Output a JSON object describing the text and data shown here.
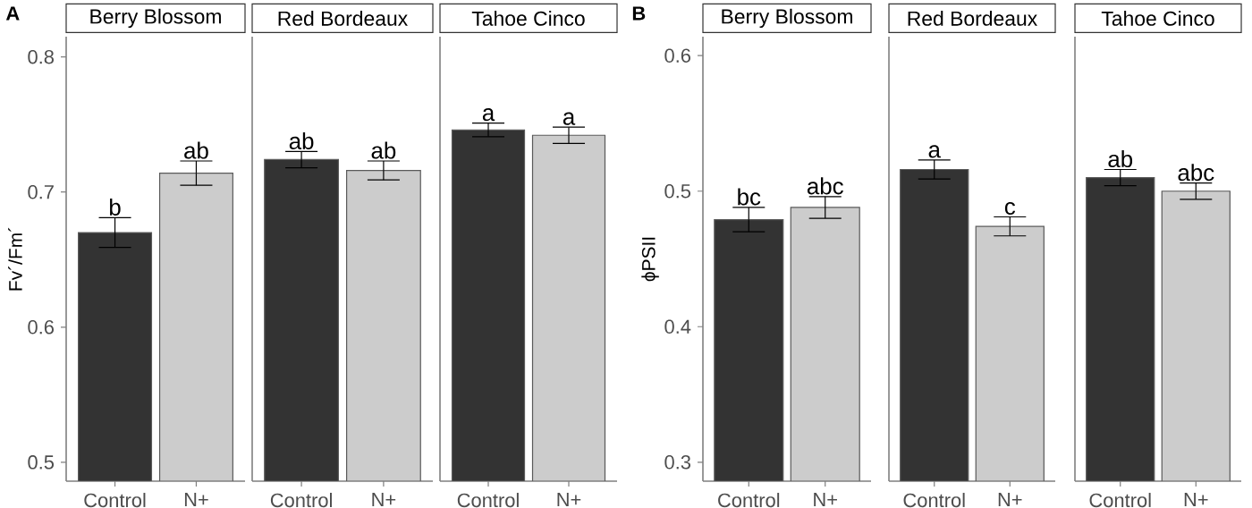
{
  "chart_data": [
    {
      "type": "bar",
      "title": "Berry Blossom",
      "ylabel": "Fv´/Fm´",
      "categories": [
        "Control",
        "N+"
      ],
      "values": [
        0.67,
        0.714
      ],
      "errors": [
        0.011,
        0.009
      ],
      "colors": [
        "#333333",
        "#cccccc"
      ],
      "ylim": [
        0.486,
        0.815
      ],
      "yticks": [
        0.5,
        0.6,
        0.7,
        0.8
      ],
      "grid": false,
      "annotations": [
        "A",
        {
          "text": "b",
          "x": "Control",
          "y": 0.681
        },
        {
          "text": "ab",
          "x": "N+",
          "y": 0.723
        }
      ]
    },
    {
      "type": "bar",
      "title": "Red Bordeaux",
      "categories": [
        "Control",
        "N+"
      ],
      "values": [
        0.724,
        0.716
      ],
      "errors": [
        0.006,
        0.007
      ],
      "colors": [
        "#333333",
        "#cccccc"
      ],
      "ylim": [
        0.486,
        0.815
      ],
      "yticks": [
        0.5,
        0.6,
        0.7,
        0.8
      ],
      "tick_labels": "x",
      "grid": false,
      "annotations": [
        {
          "text": "ab",
          "x": "Control",
          "y": 0.73
        },
        {
          "text": "ab",
          "x": "N+",
          "y": 0.723
        }
      ]
    },
    {
      "type": "bar",
      "title": "Tahoe Cinco",
      "categories": [
        "Control",
        "N+"
      ],
      "values": [
        0.746,
        0.742
      ],
      "errors": [
        0.005,
        0.006
      ],
      "colors": [
        "#333333",
        "#cccccc"
      ],
      "ylim": [
        0.486,
        0.815
      ],
      "yticks": [
        0.5,
        0.6,
        0.7,
        0.8
      ],
      "tick_labels": "x",
      "grid": false,
      "annotations": [
        {
          "text": "a",
          "x": "Control",
          "y": 0.751
        },
        {
          "text": "a",
          "x": "N+",
          "y": 0.748
        }
      ]
    },
    {
      "type": "bar",
      "title": "Berry Blossom",
      "ylabel": "ϕPSII",
      "categories": [
        "Control",
        "N+"
      ],
      "values": [
        0.479,
        0.488
      ],
      "errors": [
        0.009,
        0.008
      ],
      "colors": [
        "#333333",
        "#cccccc"
      ],
      "ylim": [
        0.286,
        0.614
      ],
      "yticks": [
        0.3,
        0.4,
        0.5,
        0.6
      ],
      "grid": false,
      "annotations": [
        "B",
        {
          "text": "bc",
          "x": "Control",
          "y": 0.488
        },
        {
          "text": "abc",
          "x": "N+",
          "y": 0.496
        }
      ]
    },
    {
      "type": "bar",
      "title": "Red Bordeaux",
      "categories": [
        "Control",
        "N+"
      ],
      "values": [
        0.516,
        0.474
      ],
      "errors": [
        0.007,
        0.007
      ],
      "colors": [
        "#333333",
        "#cccccc"
      ],
      "ylim": [
        0.286,
        0.614
      ],
      "yticks": [
        0.3,
        0.4,
        0.5,
        0.6
      ],
      "tick_labels": "x",
      "grid": false,
      "annotations": [
        {
          "text": "a",
          "x": "Control",
          "y": 0.523
        },
        {
          "text": "c",
          "x": "N+",
          "y": 0.481
        }
      ]
    },
    {
      "type": "bar",
      "title": "Tahoe Cinco",
      "categories": [
        "Control",
        "N+"
      ],
      "values": [
        0.51,
        0.5
      ],
      "errors": [
        0.006,
        0.006
      ],
      "colors": [
        "#333333",
        "#cccccc"
      ],
      "ylim": [
        0.286,
        0.614
      ],
      "yticks": [
        0.3,
        0.4,
        0.5,
        0.6
      ],
      "tick_labels": "x",
      "grid": false,
      "annotations": [
        {
          "text": "ab",
          "x": "Control",
          "y": 0.516
        },
        {
          "text": "abc",
          "x": "N+",
          "y": 0.506
        }
      ]
    }
  ]
}
